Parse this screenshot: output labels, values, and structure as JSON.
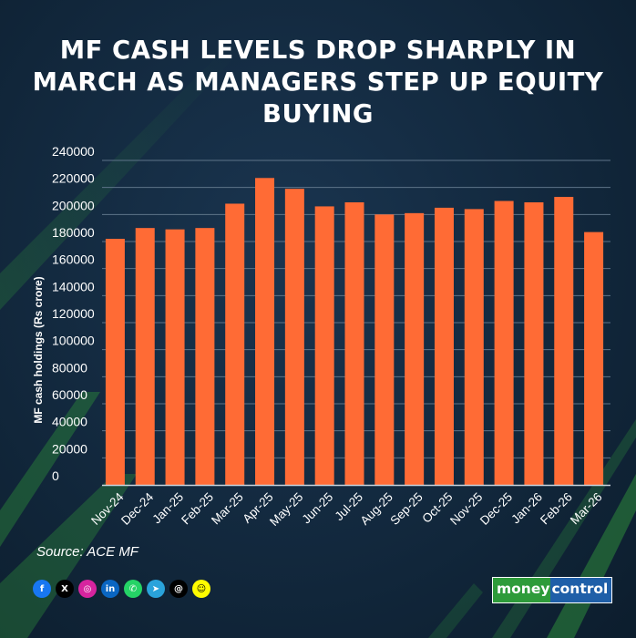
{
  "title": "MF CASH LEVELS DROP SHARPLY IN MARCH AS MANAGERS STEP UP EQUITY BUYING",
  "source": "Source: ACE MF",
  "logo": {
    "part1": "money",
    "part2": "control"
  },
  "socials": [
    {
      "name": "facebook-icon",
      "glyph": "f",
      "color": "#1877f2"
    },
    {
      "name": "x-icon",
      "glyph": "X",
      "color": "#000000"
    },
    {
      "name": "instagram-icon",
      "glyph": "◎",
      "color": "#d6249f"
    },
    {
      "name": "linkedin-icon",
      "glyph": "in",
      "color": "#0a66c2"
    },
    {
      "name": "whatsapp-icon",
      "glyph": "✆",
      "color": "#25d366"
    },
    {
      "name": "telegram-icon",
      "glyph": "➤",
      "color": "#2aa3db"
    },
    {
      "name": "threads-icon",
      "glyph": "@",
      "color": "#000000"
    },
    {
      "name": "snapchat-icon",
      "glyph": "☺",
      "color": "#fffc00"
    }
  ],
  "colors": {
    "bar": "#ff6b35",
    "grid": "#5e7489",
    "axis": "#c9d3dc",
    "text": "#ffffff"
  },
  "chart_data": {
    "type": "bar",
    "ylabel": "MF cash holdings (Rs crore)",
    "xlabel": "",
    "ylim": [
      0,
      240000
    ],
    "yticks": [
      0,
      20000,
      40000,
      60000,
      80000,
      100000,
      120000,
      140000,
      160000,
      180000,
      200000,
      220000,
      240000
    ],
    "grid": true,
    "categories": [
      "Nov-24",
      "Dec-24",
      "Jan-25",
      "Feb-25",
      "Mar-25",
      "Apr-25",
      "May-25",
      "Jun-25",
      "Jul-25",
      "Aug-25",
      "Sep-25",
      "Oct-25",
      "Nov-25",
      "Dec-25",
      "Jan-26",
      "Feb-26",
      "Mar-26"
    ],
    "values": [
      182000,
      190000,
      189000,
      190000,
      208000,
      227000,
      219000,
      206000,
      209000,
      200000,
      201000,
      205000,
      204000,
      210000,
      209000,
      213000,
      187000
    ]
  }
}
